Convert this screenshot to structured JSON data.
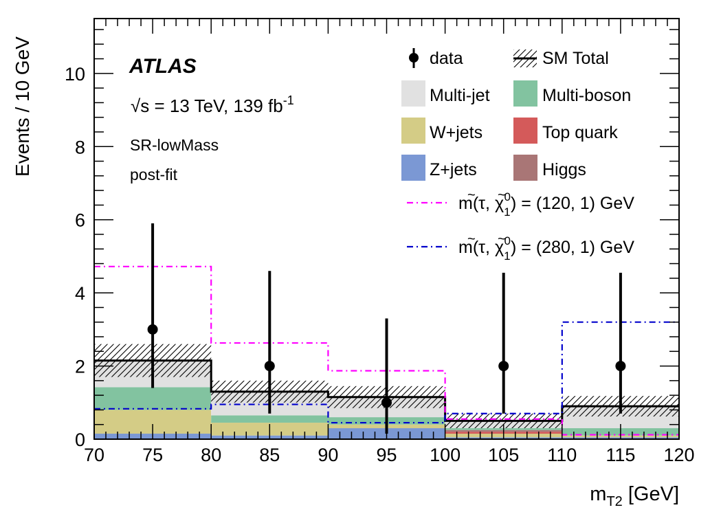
{
  "chart_data": {
    "type": "bar",
    "experiment": "ATLAS",
    "energy_lumi": {
      "sqrt": "√",
      "s": "s = 13 TeV, 139 fb",
      "sup": "-1"
    },
    "region": "SR-lowMass",
    "fit": "post-fit",
    "xlabel": {
      "main": "m",
      "sub": "T2",
      "unit": " [GeV]"
    },
    "ylabel": "Events / 10 GeV",
    "xlim": [
      70,
      120
    ],
    "ylim": [
      0,
      11.5
    ],
    "xticks": [
      "70",
      "75",
      "80",
      "85",
      "90",
      "95",
      "100",
      "105",
      "110",
      "115",
      "120"
    ],
    "yticks": [
      "0",
      "2",
      "4",
      "6",
      "8",
      "10"
    ],
    "bins": [
      [
        70,
        80
      ],
      [
        80,
        90
      ],
      [
        90,
        100
      ],
      [
        100,
        110
      ],
      [
        110,
        120
      ]
    ],
    "stack": [
      {
        "name": "Z+jets",
        "color": "#7b98d4",
        "values": [
          0.15,
          0.1,
          0.3,
          0.05,
          0.05
        ]
      },
      {
        "name": "W+jets",
        "color": "#d4cc86",
        "values": [
          0.65,
          0.35,
          0.1,
          0.1,
          0.05
        ]
      },
      {
        "name": "Top quark",
        "color": "#d45a5a",
        "values": [
          0.0,
          0.0,
          0.0,
          0.05,
          0.0
        ]
      },
      {
        "name": "Higgs",
        "color": "#a97676",
        "values": [
          0.0,
          0.0,
          0.0,
          0.05,
          0.0
        ]
      },
      {
        "name": "Multi-boson",
        "color": "#82c3a0",
        "values": [
          0.62,
          0.2,
          0.2,
          0.05,
          0.2
        ]
      },
      {
        "name": "Multi-jet",
        "color": "#e1e1e1",
        "values": [
          0.73,
          0.65,
          0.55,
          0.2,
          0.6
        ]
      }
    ],
    "sm_total": {
      "name": "SM Total",
      "values": [
        2.15,
        1.3,
        1.15,
        0.5,
        0.9
      ],
      "uncertainty": [
        0.45,
        0.3,
        0.3,
        0.2,
        0.28
      ]
    },
    "data": {
      "name": "data",
      "x": [
        75,
        85,
        95,
        105,
        115
      ],
      "y": [
        3,
        2,
        1,
        2,
        2
      ],
      "err_low": [
        1.6,
        1.3,
        0.85,
        1.3,
        1.3
      ],
      "err_high": [
        2.9,
        2.6,
        2.3,
        2.55,
        2.55
      ]
    },
    "signals": [
      {
        "name": "m(τ̃, χ̃₁⁰) = (120, 1) GeV",
        "label_parts": {
          "a": "m(",
          "tau": "τ",
          "b": ", ",
          "chi": "χ",
          "sub": "1",
          "sup": "0",
          "c": ") = (120, 1) GeV"
        },
        "color": "#ff00ff",
        "values": [
          4.72,
          2.63,
          1.87,
          0.55,
          0.12
        ]
      },
      {
        "name": "m(τ̃, χ̃₁⁰) = (280, 1) GeV",
        "label_parts": {
          "a": "m(",
          "tau": "τ",
          "b": ", ",
          "chi": "χ",
          "sub": "1",
          "sup": "0",
          "c": ") = (280, 1) GeV"
        },
        "color": "#0000cc",
        "values": [
          0.83,
          0.95,
          0.45,
          0.7,
          3.2
        ]
      }
    ],
    "legend": {
      "placement": "top-right",
      "entries": [
        "data",
        "SM Total",
        "Multi-jet",
        "Multi-boson",
        "W+jets",
        "Top quark",
        "Z+jets",
        "Higgs"
      ]
    }
  }
}
